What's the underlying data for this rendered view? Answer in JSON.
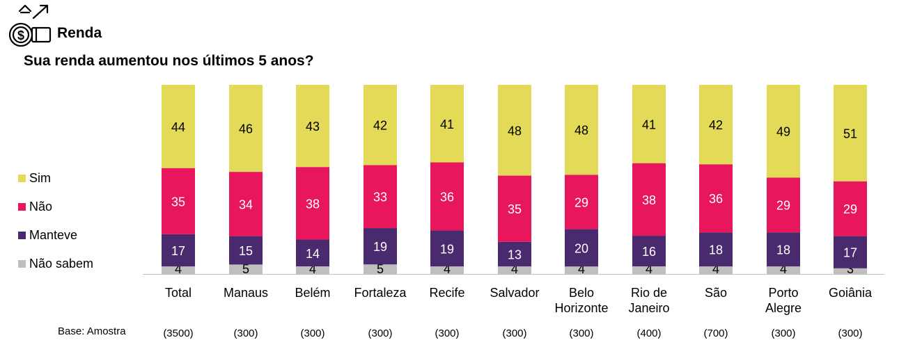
{
  "header": {
    "title": "Renda",
    "subtitle": "Sua renda aumentou nos últimos 5 anos?",
    "icon": "money-bag-growth-icon"
  },
  "base_label": "Base: Amostra",
  "legend": [
    {
      "label": "Sim",
      "color": "#E3DA57"
    },
    {
      "label": "Não",
      "color": "#E8175D"
    },
    {
      "label": "Manteve",
      "color": "#4A2A6E"
    },
    {
      "label": "Não sabem",
      "color": "#BFBFBF"
    }
  ],
  "chart_data": {
    "type": "bar",
    "stacked": true,
    "categories": [
      "Total",
      "Manaus",
      "Belém",
      "Fortaleza",
      "Recife",
      "Salvador",
      "Belo Horizonte",
      "Rio de Janeiro",
      "São",
      "Porto Alegre",
      "Goiânia"
    ],
    "category_lines": [
      [
        "Total"
      ],
      [
        "Manaus"
      ],
      [
        "Belém"
      ],
      [
        "Fortaleza"
      ],
      [
        "Recife"
      ],
      [
        "Salvador"
      ],
      [
        "Belo",
        "Horizonte"
      ],
      [
        "Rio de",
        "Janeiro"
      ],
      [
        "São"
      ],
      [
        "Porto",
        "Alegre"
      ],
      [
        "Goiânia"
      ]
    ],
    "bases": [
      "(3500)",
      "(300)",
      "(300)",
      "(300)",
      "(300)",
      "(300)",
      "(300)",
      "(400)",
      "(700)",
      "(300)",
      "(300)"
    ],
    "series": [
      {
        "name": "Não sabem",
        "color": "#BFBFBF",
        "label_color": "#000000",
        "values": [
          4,
          5,
          4,
          5,
          4,
          4,
          4,
          4,
          4,
          4,
          3
        ]
      },
      {
        "name": "Manteve",
        "color": "#4A2A6E",
        "label_color": "#FFFFFF",
        "values": [
          17,
          15,
          14,
          19,
          19,
          13,
          20,
          16,
          18,
          18,
          17
        ]
      },
      {
        "name": "Não",
        "color": "#E8175D",
        "label_color": "#FFFFFF",
        "values": [
          35,
          34,
          38,
          33,
          36,
          35,
          29,
          38,
          36,
          29,
          29
        ]
      },
      {
        "name": "Sim",
        "color": "#E3DA57",
        "label_color": "#000000",
        "values": [
          44,
          46,
          43,
          42,
          41,
          48,
          48,
          41,
          42,
          49,
          51
        ]
      }
    ],
    "ylim": [
      0,
      100
    ],
    "grid": false,
    "legend_position": "left"
  }
}
